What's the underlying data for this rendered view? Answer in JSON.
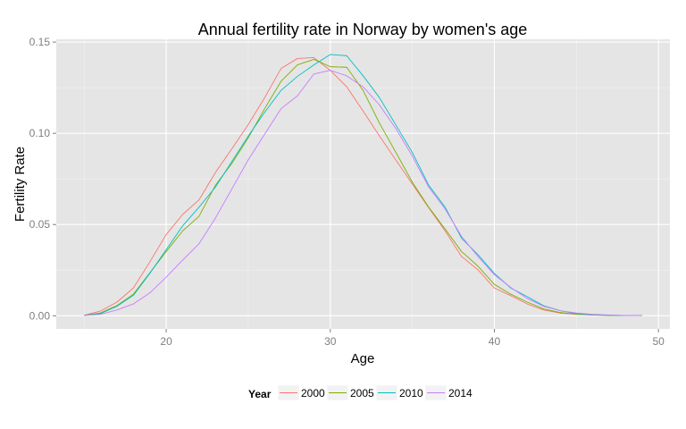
{
  "chart_data": {
    "type": "line",
    "title": "Annual fertility rate in Norway by women's age",
    "xlabel": "Age",
    "ylabel": "Fertility Rate",
    "xlim": [
      13.3,
      50.7
    ],
    "ylim": [
      -0.0072,
      0.1515
    ],
    "x_ticks": [
      20,
      30,
      40,
      50
    ],
    "x_tick_labels": [
      "20",
      "30",
      "40",
      "50"
    ],
    "y_ticks": [
      0.0,
      0.05,
      0.1,
      0.15
    ],
    "y_tick_labels": [
      "0.00",
      "0.05",
      "0.10",
      "0.15"
    ],
    "grid": true,
    "panel_background": "#e5e5e5",
    "grid_color": "#ffffff",
    "legend": {
      "title": "Year",
      "position": "bottom"
    },
    "x": [
      15,
      16,
      17,
      18,
      19,
      20,
      21,
      22,
      23,
      24,
      25,
      26,
      27,
      28,
      29,
      30,
      31,
      32,
      33,
      34,
      35,
      36,
      37,
      38,
      39,
      40,
      41,
      42,
      43,
      44,
      45,
      46,
      47,
      48,
      49
    ],
    "series": [
      {
        "name": "2000",
        "color": "#f8766d",
        "values": [
          0.0003,
          0.0026,
          0.0075,
          0.0152,
          0.0295,
          0.0445,
          0.0555,
          0.0635,
          0.0785,
          0.0915,
          0.1048,
          0.1195,
          0.1355,
          0.141,
          0.1415,
          0.1345,
          0.1255,
          0.1122,
          0.0985,
          0.0853,
          0.0722,
          0.0592,
          0.0465,
          0.0325,
          0.0252,
          0.0152,
          0.011,
          0.0065,
          0.0032,
          0.0015,
          0.0008,
          0.0004,
          0.0002,
          0.0001,
          0.0001
        ]
      },
      {
        "name": "2005",
        "color": "#7cae00",
        "values": [
          0.0002,
          0.0016,
          0.0056,
          0.0118,
          0.0235,
          0.0352,
          0.0465,
          0.0545,
          0.0715,
          0.0835,
          0.0975,
          0.1135,
          0.1285,
          0.1375,
          0.1405,
          0.1365,
          0.1362,
          0.1235,
          0.1055,
          0.0895,
          0.0732,
          0.0595,
          0.0475,
          0.0352,
          0.0272,
          0.0172,
          0.0118,
          0.0075,
          0.0038,
          0.0018,
          0.0009,
          0.0004,
          0.0002,
          0.0001,
          0.0001
        ]
      },
      {
        "name": "2010",
        "color": "#00bfc4",
        "values": [
          0.0002,
          0.0012,
          0.0052,
          0.0112,
          0.0232,
          0.0362,
          0.0492,
          0.0595,
          0.0705,
          0.0845,
          0.0985,
          0.1115,
          0.1235,
          0.1312,
          0.1375,
          0.1432,
          0.1425,
          0.1315,
          0.1195,
          0.1045,
          0.0895,
          0.0715,
          0.0595,
          0.0425,
          0.0335,
          0.0232,
          0.0152,
          0.0105,
          0.0055,
          0.0028,
          0.0012,
          0.0006,
          0.0003,
          0.0001,
          0.0001
        ]
      },
      {
        "name": "2014",
        "color": "#c77cff",
        "values": [
          0.0002,
          0.0008,
          0.0032,
          0.0065,
          0.0125,
          0.0212,
          0.0305,
          0.0395,
          0.0535,
          0.0695,
          0.0855,
          0.0995,
          0.1135,
          0.1205,
          0.1325,
          0.1345,
          0.1315,
          0.1255,
          0.1155,
          0.1025,
          0.0875,
          0.0705,
          0.0585,
          0.0435,
          0.0325,
          0.0225,
          0.0155,
          0.0095,
          0.0052,
          0.0028,
          0.0015,
          0.0008,
          0.0004,
          0.0002,
          0.0001
        ]
      }
    ]
  }
}
